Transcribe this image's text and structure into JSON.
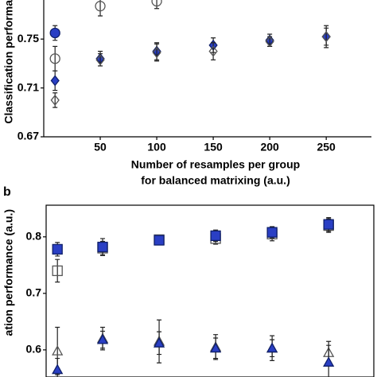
{
  "chart_data": [
    {
      "type": "scatter",
      "y_label": "Classification performa",
      "x_label": [
        "Number of resamples per group",
        "for balanced matrixing (a.u.)"
      ],
      "xlim": [
        0,
        290
      ],
      "xticks": [
        50,
        100,
        150,
        200,
        250
      ],
      "ylim": [
        0.67,
        0.782
      ],
      "yticks": [
        0.67,
        0.71,
        0.75
      ],
      "x": [
        10,
        50,
        100,
        150,
        200,
        250
      ],
      "series": [
        {
          "color": "#2a3fc4",
          "marker": "circle",
          "filled": true,
          "values": [
            0.755,
            null,
            null,
            null,
            null,
            null
          ],
          "errors": [
            0.006,
            null,
            null,
            null,
            null,
            null
          ]
        },
        {
          "color": "#555555",
          "marker": "circle",
          "filled": false,
          "values": [
            0.734,
            0.777,
            0.781,
            null,
            null,
            null
          ],
          "errors": [
            0.01,
            0.008,
            0.006,
            null,
            null,
            null
          ]
        },
        {
          "color": "#2a3fc4",
          "marker": "diamond",
          "filled": true,
          "values": [
            0.716,
            0.734,
            0.74,
            0.745,
            0.749,
            0.752
          ],
          "errors": [
            0.008,
            0.006,
            0.007,
            0.006,
            0.005,
            0.007
          ]
        },
        {
          "color": "#555555",
          "marker": "diamond",
          "filled": false,
          "values": [
            0.7,
            0.733,
            0.739,
            0.74,
            0.748,
            0.752
          ],
          "errors": [
            0.006,
            0.005,
            0.007,
            0.007,
            0.004,
            0.009
          ]
        }
      ]
    },
    {
      "type": "scatter",
      "panel": "b",
      "y_label": "ation performance (a.u.)",
      "xlim": [
        0,
        290
      ],
      "ylim": [
        0.552,
        0.856
      ],
      "yticks": [
        0.6,
        0.7,
        0.8
      ],
      "x": [
        10,
        50,
        100,
        150,
        200,
        250
      ],
      "series": [
        {
          "color": "#555555",
          "marker": "square",
          "filled": false,
          "values": [
            0.74,
            0.78,
            0.795,
            0.797,
            0.805,
            0.82
          ],
          "errors": [
            0.02,
            0.012,
            0.006,
            0.01,
            0.012,
            0.012
          ]
        },
        {
          "color": "#2a3fc4",
          "marker": "square",
          "filled": true,
          "values": [
            0.778,
            0.782,
            0.794,
            0.802,
            0.808,
            0.822
          ],
          "errors": [
            0.012,
            0.015,
            0.006,
            0.01,
            0.01,
            0.012
          ]
        },
        {
          "color": "#555555",
          "marker": "triangle",
          "filled": false,
          "values": [
            0.598,
            0.62,
            0.615,
            0.605,
            0.603,
            0.595
          ],
          "errors": [
            0.042,
            0.02,
            0.038,
            0.022,
            0.022,
            0.02
          ]
        },
        {
          "color": "#2a3fc4",
          "marker": "triangle",
          "filled": true,
          "values": [
            0.565,
            0.618,
            0.612,
            0.603,
            0.603,
            0.578
          ],
          "errors": [
            0.02,
            0.015,
            0.02,
            0.018,
            0.015,
            0.03
          ]
        }
      ]
    }
  ]
}
